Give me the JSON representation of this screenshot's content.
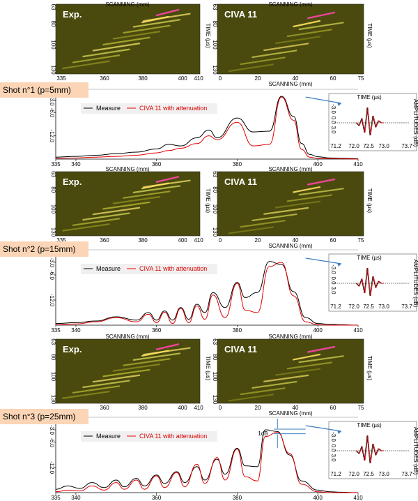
{
  "chart_data": [
    {
      "shot_label": "Shot n°1 (p=5mm)",
      "bscan": {
        "exp_title": "Exp.",
        "civa_title": "CIVA 11",
        "top_xlabel": "SCANNING (mm)",
        "bottom_xlabel": "SCANNING (mm)",
        "exp_ticks": [
          "335",
          "360",
          "380",
          "400",
          "410"
        ],
        "civa_ticks": [
          "0",
          "20",
          "40",
          "60",
          "75"
        ],
        "y_ticks": [
          "63",
          "80",
          "100",
          "130"
        ],
        "ylabel": "TIME (µs)"
      },
      "echo": {
        "type": "line",
        "xlabel": "",
        "x_ticks": [
          "335",
          "340",
          "360",
          "380",
          "400",
          "410"
        ],
        "y_ticks": [
          "-3.0",
          "-6.0",
          "-12.0"
        ],
        "xlim": [
          335,
          410
        ],
        "ylim": [
          -18,
          0
        ],
        "legend": [
          "Measure",
          "CIVA 11 with attenuation"
        ],
        "series": [
          {
            "name": "Measure",
            "x": [
              335,
              340,
              345,
              350,
              355,
              360,
              363,
              366,
              370,
              373,
              375,
              380,
              384,
              388,
              391,
              394,
              396,
              398,
              400,
              403,
              406,
              410
            ],
            "y": [
              -17.5,
              -17.3,
              -17.0,
              -16.6,
              -16.2,
              -15.4,
              -14.2,
              -14.6,
              -12.5,
              -10.5,
              -12.5,
              -7.4,
              -11.0,
              -10.8,
              -1.8,
              -7.0,
              -14.0,
              -16.8,
              -17.4,
              -17.7,
              -17.8,
              -17.9
            ]
          },
          {
            "name": "CIVA 11 with attenuation",
            "x": [
              335,
              340,
              345,
              350,
              355,
              360,
              363,
              366,
              370,
              373,
              375,
              380,
              384,
              388,
              391,
              394,
              396,
              398,
              400,
              403,
              406,
              410
            ],
            "y": [
              -17.8,
              -17.7,
              -17.5,
              -17.3,
              -17.0,
              -16.4,
              -15.8,
              -15.2,
              -14.0,
              -12.0,
              -13.0,
              -8.5,
              -14.6,
              -14.2,
              -2.0,
              -8.0,
              -15.5,
              -17.5,
              -17.8,
              -17.9,
              -17.9,
              -18.0
            ]
          }
        ]
      },
      "inset": {
        "xlabel": "TIME (µs)",
        "ylabel": "AMPLITUDES (dB)",
        "x_ticks": [
          "71.2",
          "72.0",
          "72.5",
          "73.0",
          "73.7"
        ],
        "y_ticks": [
          "-3.0",
          "0.0",
          "3.0"
        ]
      }
    },
    {
      "shot_label": "Shot n°2 (p=15mm)",
      "bscan": {
        "exp_title": "Exp.",
        "civa_title": "CIVA 11",
        "top_xlabel": "SCANNING (mm)",
        "bottom_xlabel": "SCANNING (mm)",
        "exp_ticks": [
          "335",
          "360",
          "380",
          "400",
          "410"
        ],
        "civa_ticks": [
          "0",
          "20",
          "40",
          "60",
          "75"
        ],
        "y_ticks": [
          "63",
          "80",
          "100",
          "130"
        ],
        "ylabel": "TIME (µs)"
      },
      "echo": {
        "type": "line",
        "xlabel": "",
        "x_ticks": [
          "335",
          "340",
          "360",
          "380",
          "400",
          "410"
        ],
        "y_ticks": [
          "-3.0",
          "-6.0",
          "-12.0"
        ],
        "xlim": [
          335,
          410
        ],
        "ylim": [
          -18,
          0
        ],
        "legend": [
          "Measure",
          "CIVA 11 with attenuation"
        ],
        "series": [
          {
            "name": "Measure",
            "x": [
              335,
              340,
              345,
              350,
              355,
              358,
              360,
              362,
              364,
              366,
              368,
              370,
              372,
              374,
              377,
              380,
              382,
              385,
              388,
              391,
              394,
              397,
              400,
              403,
              406,
              410
            ],
            "y": [
              -17.6,
              -17.4,
              -17.0,
              -16.0,
              -16.8,
              -15.0,
              -16.8,
              -14.6,
              -16.8,
              -13.8,
              -16.6,
              -13.0,
              -15.0,
              -10.2,
              -13.8,
              -7.8,
              -11.4,
              -10.2,
              -2.8,
              -3.5,
              -10.0,
              -16.2,
              -17.6,
              -17.8,
              -17.9,
              -18.0
            ]
          },
          {
            "name": "CIVA 11 with attenuation",
            "x": [
              335,
              340,
              345,
              350,
              355,
              358,
              360,
              362,
              364,
              366,
              368,
              370,
              372,
              374,
              377,
              380,
              382,
              385,
              388,
              391,
              394,
              397,
              400,
              403,
              406,
              410
            ],
            "y": [
              -17.9,
              -17.7,
              -17.2,
              -16.2,
              -17.2,
              -15.4,
              -17.4,
              -14.9,
              -17.6,
              -14.0,
              -17.4,
              -13.4,
              -16.6,
              -10.8,
              -16.2,
              -8.0,
              -14.4,
              -15.0,
              -4.0,
              -3.0,
              -11.0,
              -17.2,
              -17.9,
              -18.0,
              -18.0,
              -18.0
            ]
          }
        ]
      },
      "inset": {
        "xlabel": "TIME (µs)",
        "ylabel": "AMPLITUDES (dB)",
        "x_ticks": [
          "71.2",
          "72.0",
          "72.5",
          "73.0",
          "73.7"
        ],
        "y_ticks": [
          "-3.0",
          "0.0",
          "3.0"
        ]
      }
    },
    {
      "shot_label": "Shot n°3 (p=25mm)",
      "bscan": {
        "exp_title": "Exp.",
        "civa_title": "CIVA 11",
        "top_xlabel": "SCANNING (mm)",
        "bottom_xlabel": "SCANNING (mm)",
        "exp_ticks": [
          "360",
          "380",
          "400",
          "410"
        ],
        "civa_ticks": [
          "0",
          "20",
          "40",
          "60",
          "75"
        ],
        "y_ticks": [
          "63",
          "80",
          "100",
          "130"
        ],
        "ylabel": "TIME (µs)"
      },
      "echo": {
        "type": "line",
        "xlabel": "",
        "x_ticks": [
          "335",
          "340",
          "360",
          "380",
          "400",
          "410"
        ],
        "y_ticks": [
          "-3.0",
          "-6.0",
          "-12.0"
        ],
        "xlim": [
          335,
          410
        ],
        "ylim": [
          -18,
          0
        ],
        "legend": [
          "Measure",
          "CIVA 11 with attenuation"
        ],
        "annotation": "1dB",
        "series": [
          {
            "name": "Measure",
            "x": [
              335,
              338,
              341,
              344,
              347,
              350,
              352,
              355,
              357,
              360,
              362,
              365,
              367,
              370,
              372,
              375,
              377,
              380,
              382,
              385,
              387,
              390,
              393,
              396,
              400,
              403,
              406,
              410
            ],
            "y": [
              -17.2,
              -16.4,
              -17.0,
              -15.6,
              -16.8,
              -15.0,
              -16.6,
              -14.6,
              -16.4,
              -13.8,
              -15.8,
              -13.0,
              -15.6,
              -11.8,
              -15.0,
              -10.0,
              -13.6,
              -7.4,
              -11.6,
              -11.8,
              -3.0,
              -3.4,
              -9.0,
              -15.2,
              -17.4,
              -17.8,
              -17.9,
              -18.0
            ]
          },
          {
            "name": "CIVA 11 with attenuation",
            "x": [
              335,
              338,
              341,
              344,
              347,
              350,
              352,
              355,
              357,
              360,
              362,
              365,
              367,
              370,
              372,
              375,
              377,
              380,
              382,
              385,
              387,
              390,
              393,
              396,
              400,
              403,
              406,
              410
            ],
            "y": [
              -17.8,
              -17.4,
              -17.6,
              -16.4,
              -17.4,
              -15.6,
              -17.2,
              -15.0,
              -17.2,
              -14.0,
              -16.8,
              -13.2,
              -16.6,
              -11.2,
              -15.8,
              -9.6,
              -15.0,
              -7.6,
              -14.2,
              -15.2,
              -4.6,
              -3.6,
              -8.6,
              -16.0,
              -17.8,
              -18.0,
              -18.0,
              -18.0
            ]
          }
        ]
      },
      "inset": {
        "xlabel": "TIME (µs)",
        "ylabel": "AMPLITUDES (dB)",
        "x_ticks": [
          "71.2",
          "72.0",
          "72.5",
          "73.0",
          "73.7"
        ],
        "y_ticks": [
          "-3.0",
          "0.0",
          "3.0"
        ]
      }
    }
  ]
}
